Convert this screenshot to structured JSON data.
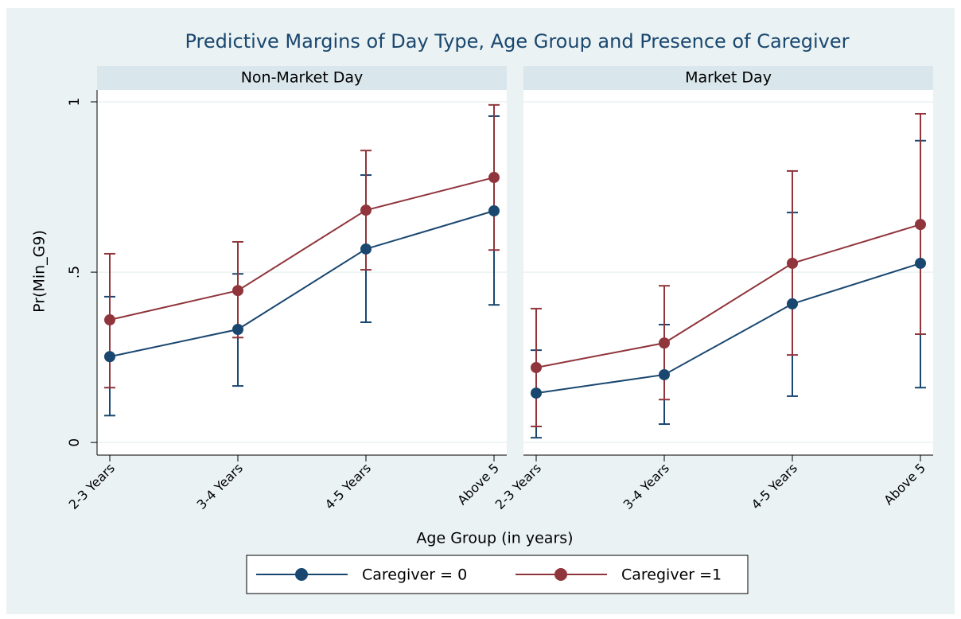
{
  "title": "Predictive Margins of Day Type, Age Group and Presence of Caregiver",
  "x_label": "Age Group (in years)",
  "y_label": "Pr(Min_G9)",
  "ylim": [
    -0.037,
    1.035
  ],
  "yticks": [
    0,
    {
      "value": 0.5,
      "label": ".5"
    },
    1
  ],
  "grid": true,
  "chart_data": [
    {
      "type": "line",
      "panel_title": "Non-Market Day",
      "categories": [
        "2-3 Years",
        "3-4 Years",
        "4-5 Years",
        "Above 5"
      ],
      "series": [
        {
          "name": "Caregiver = 0",
          "color": "#1a476f",
          "values": [
            0.252,
            0.332,
            0.568,
            0.68
          ],
          "ci_low": [
            0.079,
            0.166,
            0.353,
            0.404
          ],
          "ci_high": [
            0.428,
            0.495,
            0.785,
            0.958
          ]
        },
        {
          "name": "Caregiver =1",
          "color": "#90353b",
          "values": [
            0.36,
            0.446,
            0.682,
            0.778
          ],
          "ci_low": [
            0.161,
            0.308,
            0.507,
            0.565
          ],
          "ci_high": [
            0.554,
            0.589,
            0.857,
            0.991
          ]
        }
      ]
    },
    {
      "type": "line",
      "panel_title": "Market Day",
      "categories": [
        "2-3 Years",
        "3-4 Years",
        "4-5 Years",
        "Above 5"
      ],
      "series": [
        {
          "name": "Caregiver = 0",
          "color": "#1a476f",
          "values": [
            0.145,
            0.199,
            0.407,
            0.526
          ],
          "ci_low": [
            0.014,
            0.054,
            0.136,
            0.161
          ],
          "ci_high": [
            0.271,
            0.346,
            0.675,
            0.886
          ]
        },
        {
          "name": "Caregiver =1",
          "color": "#90353b",
          "values": [
            0.22,
            0.292,
            0.526,
            0.64
          ],
          "ci_low": [
            0.047,
            0.126,
            0.257,
            0.318
          ],
          "ci_high": [
            0.393,
            0.46,
            0.797,
            0.965
          ]
        }
      ]
    }
  ]
}
